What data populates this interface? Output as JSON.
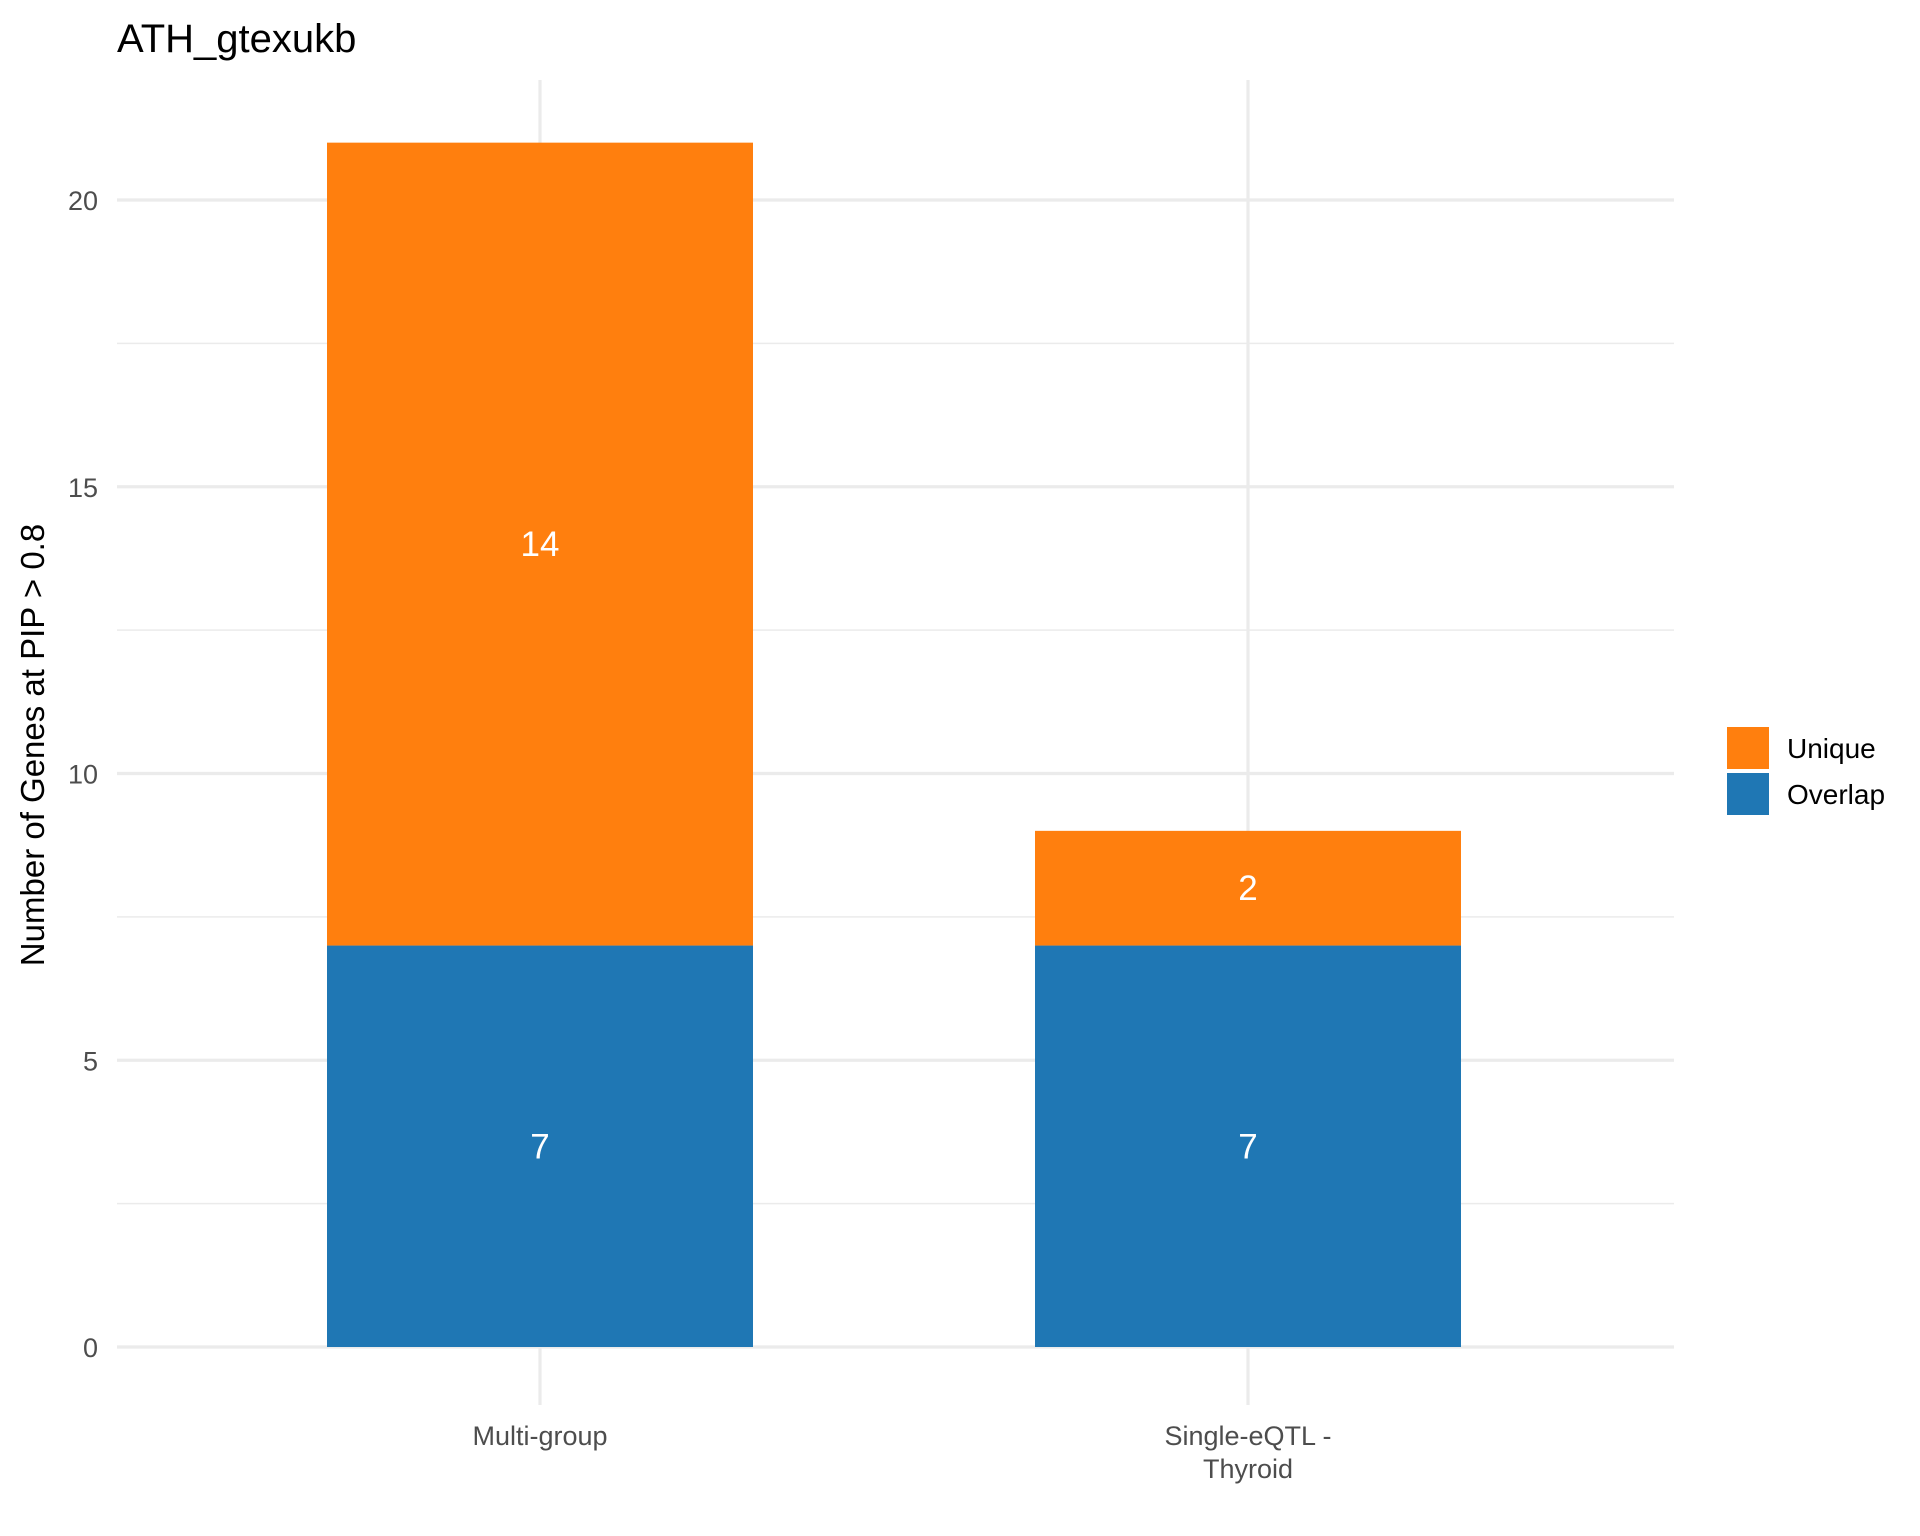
{
  "chart_data": {
    "type": "bar",
    "stacked": true,
    "title": "ATH_gtexukb",
    "xlabel": "",
    "ylabel": "Number of Genes at PIP > 0.8",
    "categories": [
      "Multi-group",
      "Single-eQTL -\nThyroid"
    ],
    "series": [
      {
        "name": "Overlap",
        "color": "#1f77b4",
        "values": [
          7,
          7
        ]
      },
      {
        "name": "Unique",
        "color": "#ff7f0e",
        "values": [
          14,
          2
        ]
      }
    ],
    "ylim": [
      0,
      21
    ],
    "yticks": [
      0,
      5,
      10,
      15,
      20
    ],
    "grid": true,
    "legend_position": "right",
    "legend_order": [
      "Unique",
      "Overlap"
    ]
  }
}
